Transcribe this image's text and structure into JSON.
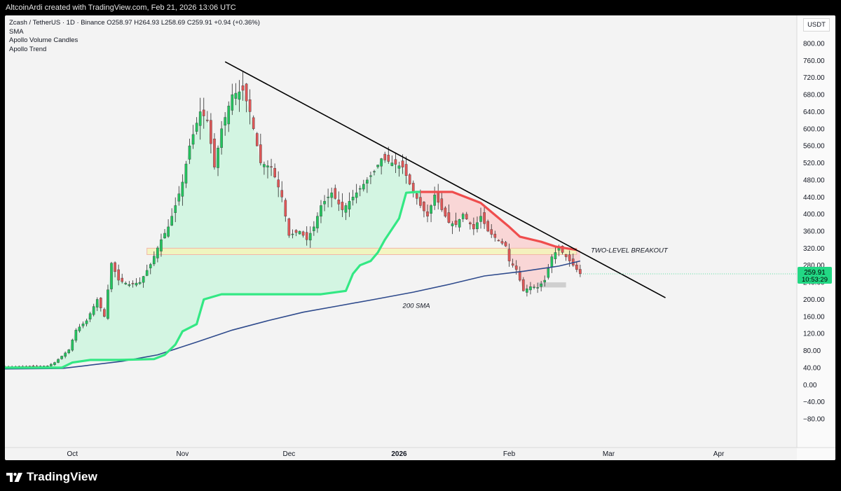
{
  "header": {
    "attribution": "AltcoinArdi created with TradingView.com, Feb 21, 2026 13:06 UTC"
  },
  "legend": {
    "symbol_line": "Zcash / TetherUS · 1D · Binance  O258.97  H264.93  L258.69  C259.91  +0.94 (+0.36%)",
    "indicators": [
      "SMA",
      "Apollo Volume Candles",
      "Apollo Trend"
    ]
  },
  "yaxis": {
    "currency": "USDT"
  },
  "footer": {
    "brand": "TradingView"
  },
  "colors": {
    "up": "#22c55e",
    "down": "#e05757",
    "trend_up": "#33e884",
    "trend_down": "#ef4d4d",
    "fill_up": "#d3f5e2",
    "fill_down": "#f9d6d6",
    "sma": "#2e4a8c",
    "price_tag": "#22d884",
    "zone_yellow": "#f3f5b9",
    "zone_red": "#f2b6a8"
  },
  "chart_data": {
    "type": "candlestick",
    "symbol": "Zcash / TetherUS",
    "interval": "1D",
    "exchange": "Binance",
    "ohlc": {
      "open": 258.97,
      "high": 264.93,
      "low": 258.69,
      "close": 259.91,
      "change": 0.94,
      "change_pct": 0.36
    },
    "last_price": "259.91",
    "countdown": "10:53:29",
    "ylim": [
      -80,
      800
    ],
    "yticks": [
      800,
      760,
      720,
      680,
      640,
      600,
      560,
      520,
      480,
      440,
      400,
      360,
      320,
      280,
      240,
      200,
      160,
      120,
      80,
      40,
      0,
      -40,
      -80
    ],
    "ytick_labels": [
      "800.00",
      "760.00",
      "720.00",
      "680.00",
      "640.00",
      "600.00",
      "560.00",
      "520.00",
      "480.00",
      "440.00",
      "400.00",
      "360.00",
      "320.00",
      "280.00",
      "240.00",
      "200.00",
      "160.00",
      "120.00",
      "80.00",
      "40.00",
      "0.00",
      "−40.00",
      "−80.00"
    ],
    "xlim": [
      "2025-09-12",
      "2026-04-23"
    ],
    "xticks": [
      {
        "date": "2025-10-01",
        "label": "Oct",
        "bold": false
      },
      {
        "date": "2025-11-01",
        "label": "Nov",
        "bold": false
      },
      {
        "date": "2025-12-01",
        "label": "Dec",
        "bold": false
      },
      {
        "date": "2026-01-01",
        "label": "2026",
        "bold": true
      },
      {
        "date": "2026-02-01",
        "label": "Feb",
        "bold": false
      },
      {
        "date": "2026-03-01",
        "label": "Mar",
        "bold": false
      },
      {
        "date": "2026-04-01",
        "label": "Apr",
        "bold": false
      }
    ],
    "price_points": [
      [
        "2025-09-12",
        42
      ],
      [
        "2025-09-24",
        44
      ],
      [
        "2025-09-26",
        52
      ],
      [
        "2025-09-30",
        82
      ],
      [
        "2025-10-02",
        128
      ],
      [
        "2025-10-05",
        150
      ],
      [
        "2025-10-08",
        200
      ],
      [
        "2025-10-10",
        160
      ],
      [
        "2025-10-12",
        285
      ],
      [
        "2025-10-14",
        245
      ],
      [
        "2025-10-17",
        235
      ],
      [
        "2025-10-20",
        240
      ],
      [
        "2025-10-23",
        282
      ],
      [
        "2025-10-26",
        340
      ],
      [
        "2025-10-28",
        370
      ],
      [
        "2025-10-30",
        420
      ],
      [
        "2025-11-01",
        475
      ],
      [
        "2025-11-03",
        560
      ],
      [
        "2025-11-06",
        640
      ],
      [
        "2025-11-08",
        620
      ],
      [
        "2025-11-10",
        510
      ],
      [
        "2025-11-12",
        600
      ],
      [
        "2025-11-15",
        680
      ],
      [
        "2025-11-18",
        690
      ],
      [
        "2025-11-20",
        640
      ],
      [
        "2025-11-23",
        520
      ],
      [
        "2025-11-26",
        510
      ],
      [
        "2025-11-29",
        440
      ],
      [
        "2025-12-01",
        350
      ],
      [
        "2025-12-04",
        360
      ],
      [
        "2025-12-06",
        340
      ],
      [
        "2025-12-08",
        370
      ],
      [
        "2025-12-10",
        420
      ],
      [
        "2025-12-13",
        450
      ],
      [
        "2025-12-16",
        410
      ],
      [
        "2025-12-19",
        440
      ],
      [
        "2025-12-22",
        470
      ],
      [
        "2025-12-25",
        500
      ],
      [
        "2025-12-27",
        530
      ],
      [
        "2025-12-30",
        520
      ],
      [
        "2026-01-02",
        510
      ],
      [
        "2026-01-04",
        470
      ],
      [
        "2026-01-07",
        420
      ],
      [
        "2026-01-09",
        395
      ],
      [
        "2026-01-11",
        445
      ],
      [
        "2026-01-13",
        410
      ],
      [
        "2026-01-15",
        380
      ],
      [
        "2026-01-17",
        375
      ],
      [
        "2026-01-19",
        400
      ],
      [
        "2026-01-22",
        365
      ],
      [
        "2026-01-24",
        395
      ],
      [
        "2026-01-26",
        360
      ],
      [
        "2026-01-28",
        345
      ],
      [
        "2026-01-31",
        325
      ],
      [
        "2026-02-01",
        290
      ],
      [
        "2026-02-03",
        270
      ],
      [
        "2026-02-05",
        220
      ],
      [
        "2026-02-07",
        230
      ],
      [
        "2026-02-09",
        228
      ],
      [
        "2026-02-11",
        245
      ],
      [
        "2026-02-13",
        300
      ],
      [
        "2026-02-15",
        320
      ],
      [
        "2026-02-17",
        300
      ],
      [
        "2026-02-19",
        280
      ],
      [
        "2026-02-21",
        260
      ]
    ],
    "series": [
      {
        "name": "200 SMA",
        "points": [
          [
            "2025-09-12",
            37
          ],
          [
            "2025-09-28",
            38
          ],
          [
            "2025-10-05",
            45
          ],
          [
            "2025-10-15",
            55
          ],
          [
            "2025-10-25",
            70
          ],
          [
            "2025-11-05",
            100
          ],
          [
            "2025-11-15",
            128
          ],
          [
            "2025-11-25",
            150
          ],
          [
            "2025-12-05",
            170
          ],
          [
            "2025-12-15",
            185
          ],
          [
            "2025-12-25",
            200
          ],
          [
            "2026-01-05",
            217
          ],
          [
            "2026-01-15",
            235
          ],
          [
            "2026-01-25",
            255
          ],
          [
            "2026-02-05",
            266
          ],
          [
            "2026-02-15",
            278
          ],
          [
            "2026-02-21",
            290
          ]
        ]
      },
      {
        "name": "Apollo Trend",
        "up_points": [
          [
            "2025-09-12",
            40
          ],
          [
            "2025-09-28",
            40
          ],
          [
            "2025-10-01",
            52
          ],
          [
            "2025-10-06",
            58
          ],
          [
            "2025-10-14",
            58
          ],
          [
            "2025-10-24",
            60
          ],
          [
            "2025-10-27",
            70
          ],
          [
            "2025-10-30",
            94
          ],
          [
            "2025-11-01",
            125
          ],
          [
            "2025-11-05",
            142
          ],
          [
            "2025-11-07",
            200
          ],
          [
            "2025-11-12",
            212
          ],
          [
            "2025-12-10",
            212
          ],
          [
            "2025-12-17",
            220
          ],
          [
            "2025-12-19",
            260
          ],
          [
            "2025-12-21",
            280
          ],
          [
            "2025-12-24",
            290
          ],
          [
            "2025-12-26",
            310
          ],
          [
            "2025-12-28",
            340
          ],
          [
            "2026-01-01",
            390
          ],
          [
            "2026-01-03",
            450
          ],
          [
            "2026-01-06",
            452
          ],
          [
            "2026-01-07",
            452
          ]
        ],
        "down_points": [
          [
            "2026-01-07",
            452
          ],
          [
            "2026-01-16",
            452
          ],
          [
            "2026-01-24",
            426
          ],
          [
            "2026-01-27",
            405
          ],
          [
            "2026-02-01",
            370
          ],
          [
            "2026-02-04",
            347
          ],
          [
            "2026-02-10",
            335
          ],
          [
            "2026-02-14",
            324
          ],
          [
            "2026-02-20",
            316
          ]
        ]
      }
    ],
    "trendline": [
      [
        "2025-11-13",
        757
      ],
      [
        "2026-03-17",
        204
      ]
    ],
    "zones": [
      {
        "from": "2025-10-22",
        "to": "2026-02-20",
        "y0": 305,
        "y1": 320,
        "kind": "yellow"
      },
      {
        "from": "2026-02-09",
        "to": "2026-02-17",
        "y0": 228,
        "y1": 240,
        "kind": "gray"
      }
    ],
    "annotations": [
      {
        "text": "TWO-LEVEL BREAKOUT",
        "date": "2026-02-24",
        "y": 315
      },
      {
        "text": "200 SMA",
        "date": "2026-01-02",
        "y": 185
      }
    ]
  }
}
